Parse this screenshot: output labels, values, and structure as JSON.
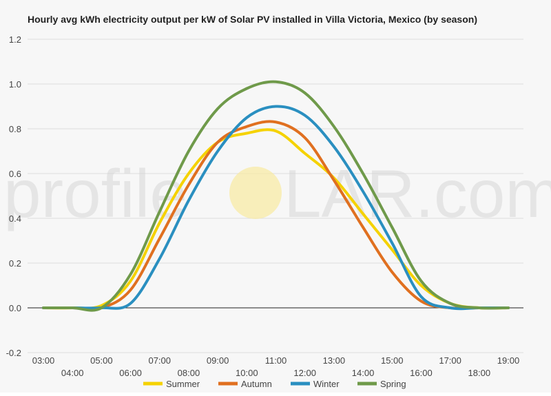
{
  "chart_data": {
    "type": "line",
    "title": "Hourly avg kWh electricity output per kW of Solar PV installed in Villa Victoria, Mexico (by season)",
    "xlabel": "",
    "ylabel": "",
    "x": [
      "03:00",
      "04:00",
      "05:00",
      "06:00",
      "07:00",
      "08:00",
      "09:00",
      "10:00",
      "11:00",
      "12:00",
      "13:00",
      "14:00",
      "15:00",
      "16:00",
      "17:00",
      "18:00",
      "19:00"
    ],
    "ylim": [
      -0.2,
      1.2
    ],
    "yticks": [
      "-0.2",
      "0.0",
      "0.2",
      "0.4",
      "0.6",
      "0.8",
      "1.0",
      "1.2"
    ],
    "grid": true,
    "legend_position": "bottom",
    "series": [
      {
        "name": "Summer",
        "color": "#f5d200",
        "values": [
          0,
          0,
          0.01,
          0.12,
          0.38,
          0.6,
          0.74,
          0.78,
          0.79,
          0.69,
          0.58,
          0.42,
          0.26,
          0.1,
          0.02,
          0,
          0
        ]
      },
      {
        "name": "Autumn",
        "color": "#e07020",
        "values": [
          0,
          0,
          0,
          0.08,
          0.31,
          0.55,
          0.74,
          0.81,
          0.83,
          0.76,
          0.57,
          0.36,
          0.16,
          0.03,
          0,
          0,
          0
        ]
      },
      {
        "name": "Winter",
        "color": "#2a8fc0",
        "values": [
          0,
          0,
          0,
          0.02,
          0.22,
          0.48,
          0.7,
          0.85,
          0.9,
          0.86,
          0.72,
          0.52,
          0.29,
          0.05,
          0,
          0,
          0
        ]
      },
      {
        "name": "Spring",
        "color": "#6f9a4a",
        "values": [
          0,
          0,
          0,
          0.15,
          0.43,
          0.7,
          0.89,
          0.98,
          1.01,
          0.96,
          0.81,
          0.6,
          0.36,
          0.12,
          0.02,
          0,
          0
        ]
      }
    ]
  },
  "watermark": {
    "text_left": "profile",
    "text_right": "LAR.com",
    "sun_color": "#f8e9a0"
  }
}
